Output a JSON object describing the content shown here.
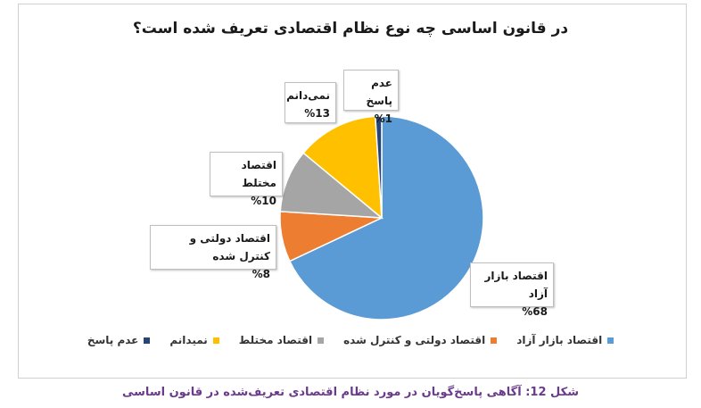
{
  "chart_data": {
    "type": "pie",
    "title": "در قانون اساسی چه نوع نظام اقتصادی تعریف شده است؟",
    "categories": [
      "اقتصاد بازار آزاد",
      "اقتصاد دولتی و کنترل شده",
      "اقتصاد مختلط",
      "نمی‌دانم",
      "عدم پاسخ"
    ],
    "values": [
      68,
      8,
      10,
      13,
      1
    ],
    "colors": [
      "#5B9BD5",
      "#ED7D31",
      "#A5A5A5",
      "#FFC000",
      "#264478"
    ],
    "data_labels": [
      {
        "name": "اقتصاد بازار آزاد",
        "value": "%68"
      },
      {
        "name": "اقتصاد دولتی و کنترل شده",
        "value": "%8"
      },
      {
        "name": "اقتصاد مختلط",
        "value": "%10"
      },
      {
        "name": "نمی‌دانم",
        "value": "%13"
      },
      {
        "name": "عدم پاسخ",
        "value": "%1"
      }
    ],
    "legend": [
      "اقتصاد بازار آزاد",
      "اقتصاد دولتی و کنترل شده",
      "اقتصاد مختلط",
      "نمیدانم",
      "عدم پاسخ"
    ],
    "legend_position": "bottom"
  },
  "caption": "شکل 12: آگاهی پاسخ‌گویان در مورد نظام اقتصادی تعریف‌شده در قانون اساسی"
}
